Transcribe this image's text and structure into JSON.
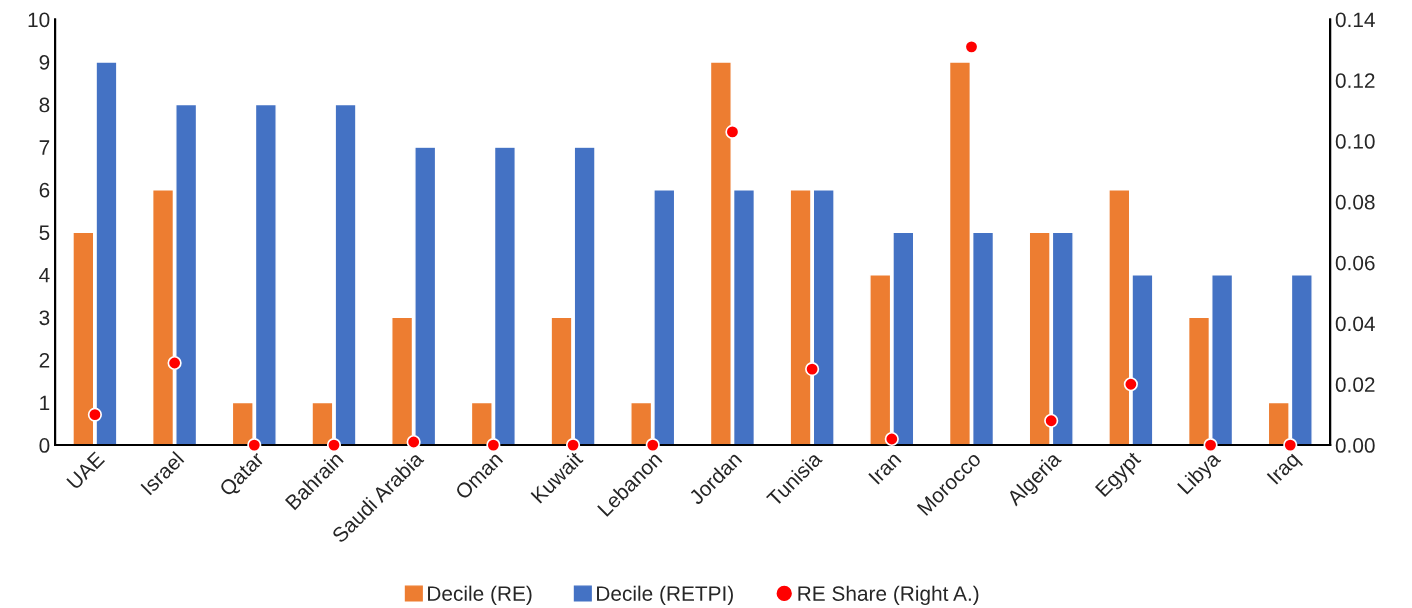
{
  "chart_data": {
    "type": "bar",
    "categories": [
      "UAE",
      "Israel",
      "Qatar",
      "Bahrain",
      "Saudi Arabia",
      "Oman",
      "Kuwait",
      "Lebanon",
      "Jordan",
      "Tunisia",
      "Iran",
      "Morocco",
      "Algeria",
      "Egypt",
      "Libya",
      "Iraq"
    ],
    "series": [
      {
        "name": "Decile (RE)",
        "color": "#ed7d31",
        "values": [
          5,
          6,
          1,
          1,
          3,
          1,
          3,
          1,
          9,
          6,
          4,
          9,
          5,
          6,
          3,
          1
        ]
      },
      {
        "name": "Decile (RETPI)",
        "color": "#4472c4",
        "values": [
          9,
          8,
          8,
          8,
          7,
          7,
          7,
          6,
          6,
          6,
          5,
          5,
          5,
          4,
          4,
          4
        ]
      },
      {
        "name": "RE Share (Right A.)",
        "type": "scatter",
        "axis": "y2",
        "color": "#ff0000",
        "marker": "circle",
        "values": [
          0.01,
          0.027,
          0,
          0,
          0.001,
          0,
          0,
          0,
          0.103,
          0.025,
          0.002,
          0.131,
          0.008,
          0.02,
          0,
          0
        ]
      }
    ],
    "ylim": [
      0,
      10
    ],
    "yticks": [
      0,
      1,
      2,
      3,
      4,
      5,
      6,
      7,
      8,
      9,
      10
    ],
    "y2lim": [
      0,
      0.14
    ],
    "y2ticks": [
      {
        "value": 0,
        "label": "0.00"
      },
      {
        "value": 0.02,
        "label": "0.02"
      },
      {
        "value": 0.04,
        "label": "0.04"
      },
      {
        "value": 0.06,
        "label": "0.06"
      },
      {
        "value": 0.08,
        "label": "0.08"
      },
      {
        "value": 0.1,
        "label": "0.10"
      },
      {
        "value": 0.12,
        "label": "0.12"
      },
      {
        "value": 0.14,
        "label": "0.14"
      }
    ],
    "grid": false,
    "legend": "bottom"
  }
}
